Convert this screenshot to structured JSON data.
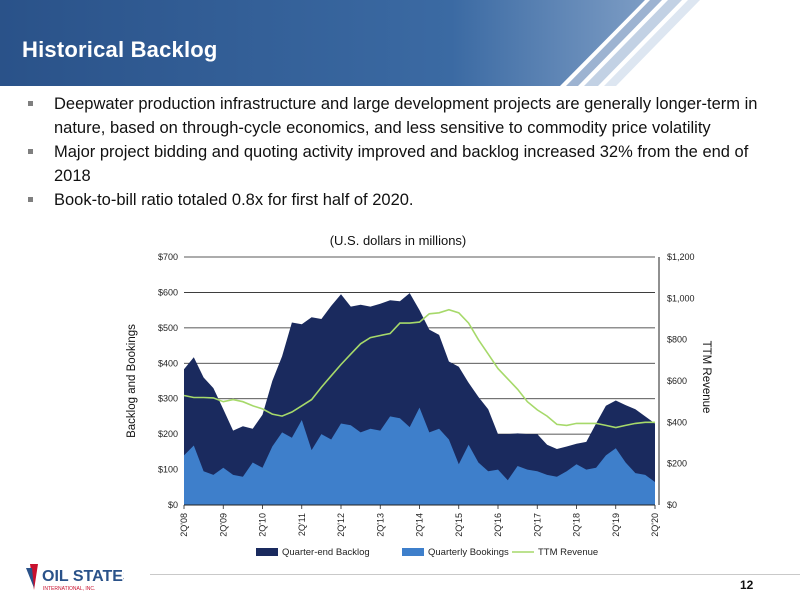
{
  "header": {
    "title": "Historical Backlog"
  },
  "bullets": [
    "Deepwater production infrastructure and large development projects are generally longer-term in nature, based on through-cycle economics, and less sensitive to commodity price volatility",
    "Major project bidding and quoting activity improved and backlog increased 32% from the end of 2018",
    "Book-to-bill ratio totaled 0.8x for first half of 2020."
  ],
  "subtitle": "(U.S. dollars in millions)",
  "logo": {
    "text": "OIL STATES",
    "subtext": "INTERNATIONAL, INC."
  },
  "page_number": "12",
  "colors": {
    "header": "#2b5a8f",
    "backlog": "#1a2a5e",
    "bookings": "#3e7fcb",
    "ttm": "#a6d96a"
  },
  "chart_data": {
    "type": "area",
    "title": "",
    "y_left_label": "Backlog and Bookings",
    "y_right_label": "TTM Revenue",
    "y_left_ticks": [
      "$0",
      "$100",
      "$200",
      "$300",
      "$400",
      "$500",
      "$600",
      "$700"
    ],
    "y_right_ticks": [
      "$0",
      "$200",
      "$400",
      "$600",
      "$800",
      "$1,000",
      "$1,200"
    ],
    "ylim_left": [
      0,
      700
    ],
    "ylim_right": [
      0,
      1200
    ],
    "x_tick_labels": [
      "2Q'08",
      "2Q'09",
      "2Q'10",
      "2Q'11",
      "2Q'12",
      "2Q'13",
      "2Q'14",
      "2Q'15",
      "2Q'16",
      "2Q'17",
      "2Q'18",
      "2Q'19",
      "2Q'20"
    ],
    "x_tick_every": 4,
    "legend": [
      "Quarter-end Backlog",
      "Quarterly Bookings",
      "TTM Revenue"
    ],
    "legend_position": "bottom",
    "series": [
      {
        "name": "Quarter-end Backlog",
        "values": [
          383,
          417,
          360,
          330,
          270,
          210,
          222,
          215,
          255,
          350,
          420,
          515,
          510,
          530,
          525,
          562,
          595,
          560,
          565,
          560,
          568,
          578,
          575,
          598,
          550,
          495,
          480,
          405,
          390,
          345,
          305,
          270,
          200,
          200,
          202,
          200,
          200,
          170,
          158,
          165,
          173,
          178,
          230,
          280,
          295,
          282,
          270,
          250,
          230
        ]
      },
      {
        "name": "Quarterly Bookings",
        "values": [
          140,
          168,
          95,
          85,
          105,
          85,
          80,
          120,
          105,
          165,
          205,
          190,
          240,
          155,
          200,
          185,
          230,
          225,
          205,
          215,
          210,
          250,
          245,
          220,
          275,
          205,
          215,
          185,
          115,
          170,
          120,
          95,
          100,
          70,
          110,
          100,
          95,
          85,
          80,
          95,
          115,
          100,
          105,
          140,
          160,
          120,
          90,
          85,
          65
        ]
      },
      {
        "name": "TTM Revenue",
        "values": [
          530,
          520,
          520,
          518,
          500,
          510,
          500,
          480,
          465,
          440,
          430,
          450,
          480,
          510,
          570,
          625,
          680,
          730,
          780,
          810,
          820,
          830,
          880,
          880,
          885,
          925,
          930,
          945,
          930,
          880,
          800,
          730,
          660,
          610,
          560,
          500,
          460,
          430,
          390,
          385,
          395,
          395,
          395,
          385,
          375,
          385,
          395,
          400,
          400
        ]
      }
    ]
  }
}
